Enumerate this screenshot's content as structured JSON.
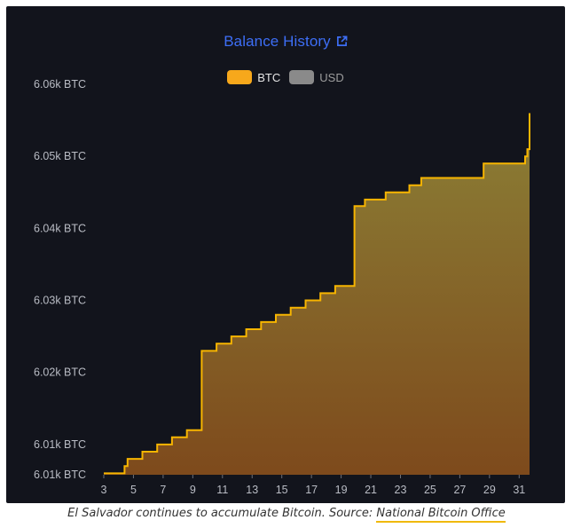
{
  "chart_data": {
    "type": "area",
    "title": "Balance History",
    "legend": [
      {
        "label": "BTC",
        "color": "#f7a81b",
        "active": true
      },
      {
        "label": "USD",
        "color": "#8a8a8a",
        "active": false
      }
    ],
    "x_ticks": [
      "3",
      "5",
      "7",
      "9",
      "11",
      "13",
      "15",
      "17",
      "19",
      "21",
      "23",
      "25",
      "27",
      "29",
      "31"
    ],
    "y_ticks": [
      "6.06k BTC",
      "6.05k BTC",
      "6.04k BTC",
      "6.03k BTC",
      "6.02k BTC",
      "6.01k BTC",
      "6.01k BTC"
    ],
    "y_tick_values": [
      6060,
      6050,
      6040,
      6030,
      6020,
      6010,
      6005.8
    ],
    "xlim": [
      3,
      31.7
    ],
    "ylim": [
      6005.8,
      6060
    ],
    "series": [
      {
        "values_x": [
          3,
          4.4,
          4.6,
          5.6,
          6.6,
          7.6,
          8.6,
          9.6,
          10.6,
          11.6,
          12.6,
          13.6,
          14.6,
          15.6,
          16.6,
          17.6,
          18.6,
          19.9,
          20.6,
          22,
          23.6,
          24.4,
          28.6,
          31.4,
          31.55
        ],
        "values_y": [
          6006,
          6007,
          6008,
          6009,
          6010,
          6011,
          6012,
          6023,
          6024,
          6025,
          6026,
          6027,
          6028,
          6029,
          6030,
          6031,
          6032,
          6043.1,
          6044,
          6045,
          6046,
          6047,
          6049,
          6050,
          6051
        ]
      }
    ],
    "line_color": "#f7b500",
    "fill_top": "#8a7a33",
    "fill_bottom": "#7e4a1c"
  },
  "caption": {
    "text": "El Salvador continues to accumulate Bitcoin. Source: ",
    "link": "National Bitcoin Office"
  }
}
